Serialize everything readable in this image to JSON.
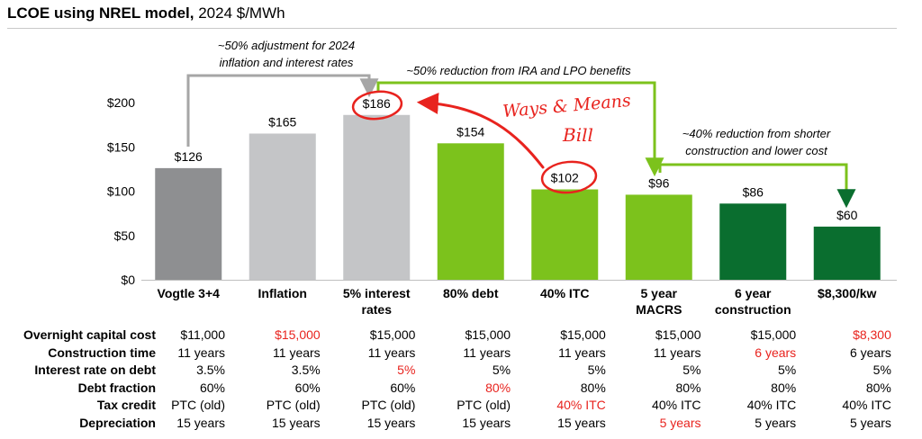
{
  "title": {
    "bold": "LCOE using NREL model,",
    "rest": " 2024 $/MWh"
  },
  "colors": {
    "dark_gray": "#8e8f91",
    "light_gray": "#c4c5c7",
    "light_green": "#7cc21c",
    "dark_green": "#0a6e2f",
    "annotation_gray": "#a6a6a6",
    "annotation_green": "#7cc21c",
    "handwriting_red": "#e8231e",
    "table_red": "#e8231e"
  },
  "annotations": {
    "gray_note_line1": "~50% adjustment for 2024",
    "gray_note_line2": "inflation and interest rates",
    "green_note_top": "~50% reduction from IRA and LPO benefits",
    "green_note_line1": "~40% reduction from shorter",
    "green_note_line2": "construction and lower cost",
    "handwritten_line1": "Ways & Means",
    "handwritten_line2": "Bill"
  },
  "chart_data": {
    "type": "bar",
    "title": "LCOE using NREL model, 2024 $/MWh",
    "categories": [
      "Vogtle 3+4",
      "Inflation",
      "5% interest rates",
      "80% debt",
      "40% ITC",
      "5 year MACRS",
      "6 year construction",
      "$8,300/kw"
    ],
    "category_lines": [
      [
        "Vogtle 3+4"
      ],
      [
        "Inflation"
      ],
      [
        "5% interest",
        "rates"
      ],
      [
        "80% debt"
      ],
      [
        "40% ITC"
      ],
      [
        "5 year",
        "MACRS"
      ],
      [
        "6 year",
        "construction"
      ],
      [
        "$8,300/kw"
      ]
    ],
    "values": [
      126,
      165,
      186,
      154,
      102,
      96,
      86,
      60
    ],
    "value_labels": [
      "$126",
      "$165",
      "$186",
      "$154",
      "$102",
      "$96",
      "$86",
      "$60"
    ],
    "bar_colors": [
      "#8e8f91",
      "#c4c5c7",
      "#c4c5c7",
      "#7cc21c",
      "#7cc21c",
      "#7cc21c",
      "#0a6e2f",
      "#0a6e2f"
    ],
    "ylim": [
      0,
      200
    ],
    "yticks": [
      0,
      50,
      100,
      150,
      200
    ],
    "ytick_labels": [
      "$0",
      "$50",
      "$100",
      "$150",
      "$200"
    ],
    "grid": false,
    "legend": "none"
  },
  "table": {
    "rows": [
      {
        "label": "Overnight capital cost",
        "cells": [
          "$11,000",
          "$15,000",
          "$15,000",
          "$15,000",
          "$15,000",
          "$15,000",
          "$15,000",
          "$8,300"
        ],
        "red": [
          false,
          true,
          false,
          false,
          false,
          false,
          false,
          true
        ]
      },
      {
        "label": "Construction time",
        "cells": [
          "11 years",
          "11 years",
          "11 years",
          "11 years",
          "11 years",
          "11 years",
          "6 years",
          "6 years"
        ],
        "red": [
          false,
          false,
          false,
          false,
          false,
          false,
          true,
          false
        ]
      },
      {
        "label": "Interest rate on debt",
        "cells": [
          "3.5%",
          "3.5%",
          "5%",
          "5%",
          "5%",
          "5%",
          "5%",
          "5%"
        ],
        "red": [
          false,
          false,
          true,
          false,
          false,
          false,
          false,
          false
        ]
      },
      {
        "label": "Debt fraction",
        "cells": [
          "60%",
          "60%",
          "60%",
          "80%",
          "80%",
          "80%",
          "80%",
          "80%"
        ],
        "red": [
          false,
          false,
          false,
          true,
          false,
          false,
          false,
          false
        ]
      },
      {
        "label": "Tax credit",
        "cells": [
          "PTC (old)",
          "PTC (old)",
          "PTC (old)",
          "PTC (old)",
          "40% ITC",
          "40% ITC",
          "40% ITC",
          "40% ITC"
        ],
        "red": [
          false,
          false,
          false,
          false,
          true,
          false,
          false,
          false
        ]
      },
      {
        "label": "Depreciation",
        "cells": [
          "15 years",
          "15 years",
          "15 years",
          "15 years",
          "15 years",
          "5 years",
          "5 years",
          "5 years"
        ],
        "red": [
          false,
          false,
          false,
          false,
          false,
          true,
          false,
          false
        ]
      }
    ]
  }
}
